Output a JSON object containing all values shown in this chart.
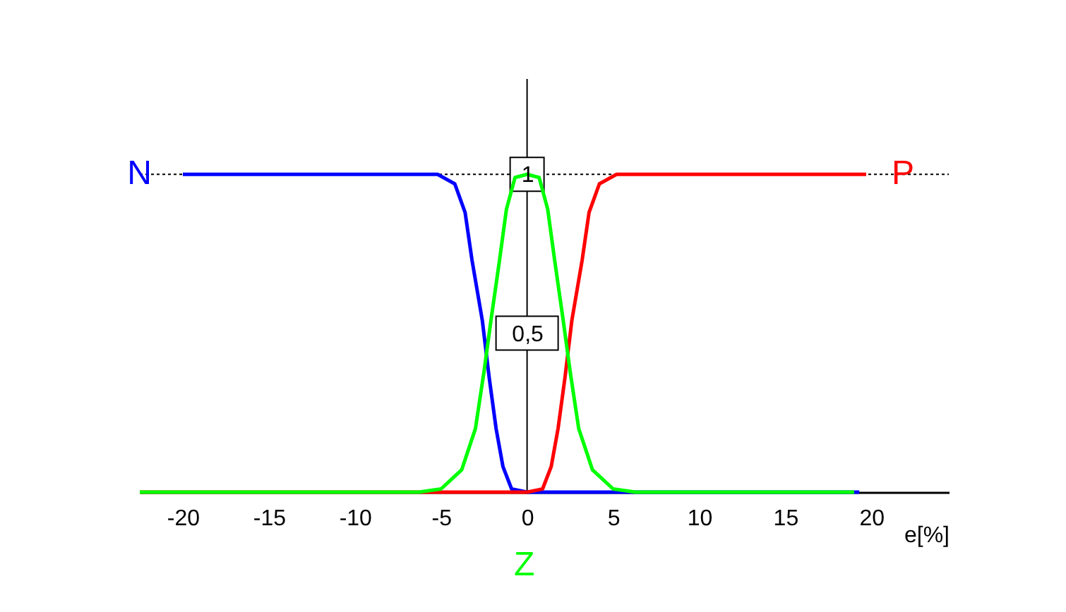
{
  "chart_data": {
    "type": "line",
    "xlabel": "e[%]",
    "xlim": [
      -22.5,
      24.5
    ],
    "xticks": [
      -20,
      -15,
      -10,
      -5,
      0,
      5,
      10,
      15,
      20
    ],
    "ylim": [
      0,
      1.3
    ],
    "yticks": [
      {
        "value": 0.5,
        "label": "0,5"
      },
      {
        "value": 1,
        "label": "1"
      }
    ],
    "series": [
      {
        "name": "N",
        "color": "#0000ff",
        "x": [
          -20,
          -5.2,
          -4.2,
          -3.6,
          -3.2,
          -2.6,
          -2.2,
          -1.8,
          -1.4,
          -0.9,
          0,
          19.3
        ],
        "values": [
          1,
          1,
          0.97,
          0.88,
          0.73,
          0.54,
          0.36,
          0.2,
          0.08,
          0.01,
          0,
          0
        ]
      },
      {
        "name": "P",
        "color": "#ff0000",
        "x": [
          -22.5,
          0,
          0.9,
          1.4,
          1.8,
          2.2,
          2.6,
          3.2,
          3.6,
          4.2,
          5.2,
          19.7
        ],
        "values": [
          0,
          0,
          0.01,
          0.08,
          0.2,
          0.36,
          0.54,
          0.73,
          0.88,
          0.97,
          1,
          1
        ]
      },
      {
        "name": "Z",
        "color": "#00ff00",
        "x": [
          -22.5,
          -6.3,
          -5,
          -3.8,
          -3,
          -2.5,
          -2.1,
          -1.6,
          -1.2,
          -0.7,
          0,
          0.7,
          1.2,
          1.6,
          2.1,
          2.5,
          3,
          3.8,
          5,
          6.3,
          19
        ],
        "values": [
          0,
          0,
          0.01,
          0.07,
          0.2,
          0.38,
          0.54,
          0.73,
          0.89,
          0.99,
          1,
          0.99,
          0.89,
          0.73,
          0.54,
          0.38,
          0.2,
          0.07,
          0.01,
          0,
          0
        ]
      }
    ],
    "ref_lines": [
      {
        "axis": "y",
        "value": 1,
        "line_style": "dotted",
        "color": "#000000"
      }
    ],
    "legend": false,
    "grid": false,
    "marker": "none",
    "line_style": "solid"
  }
}
